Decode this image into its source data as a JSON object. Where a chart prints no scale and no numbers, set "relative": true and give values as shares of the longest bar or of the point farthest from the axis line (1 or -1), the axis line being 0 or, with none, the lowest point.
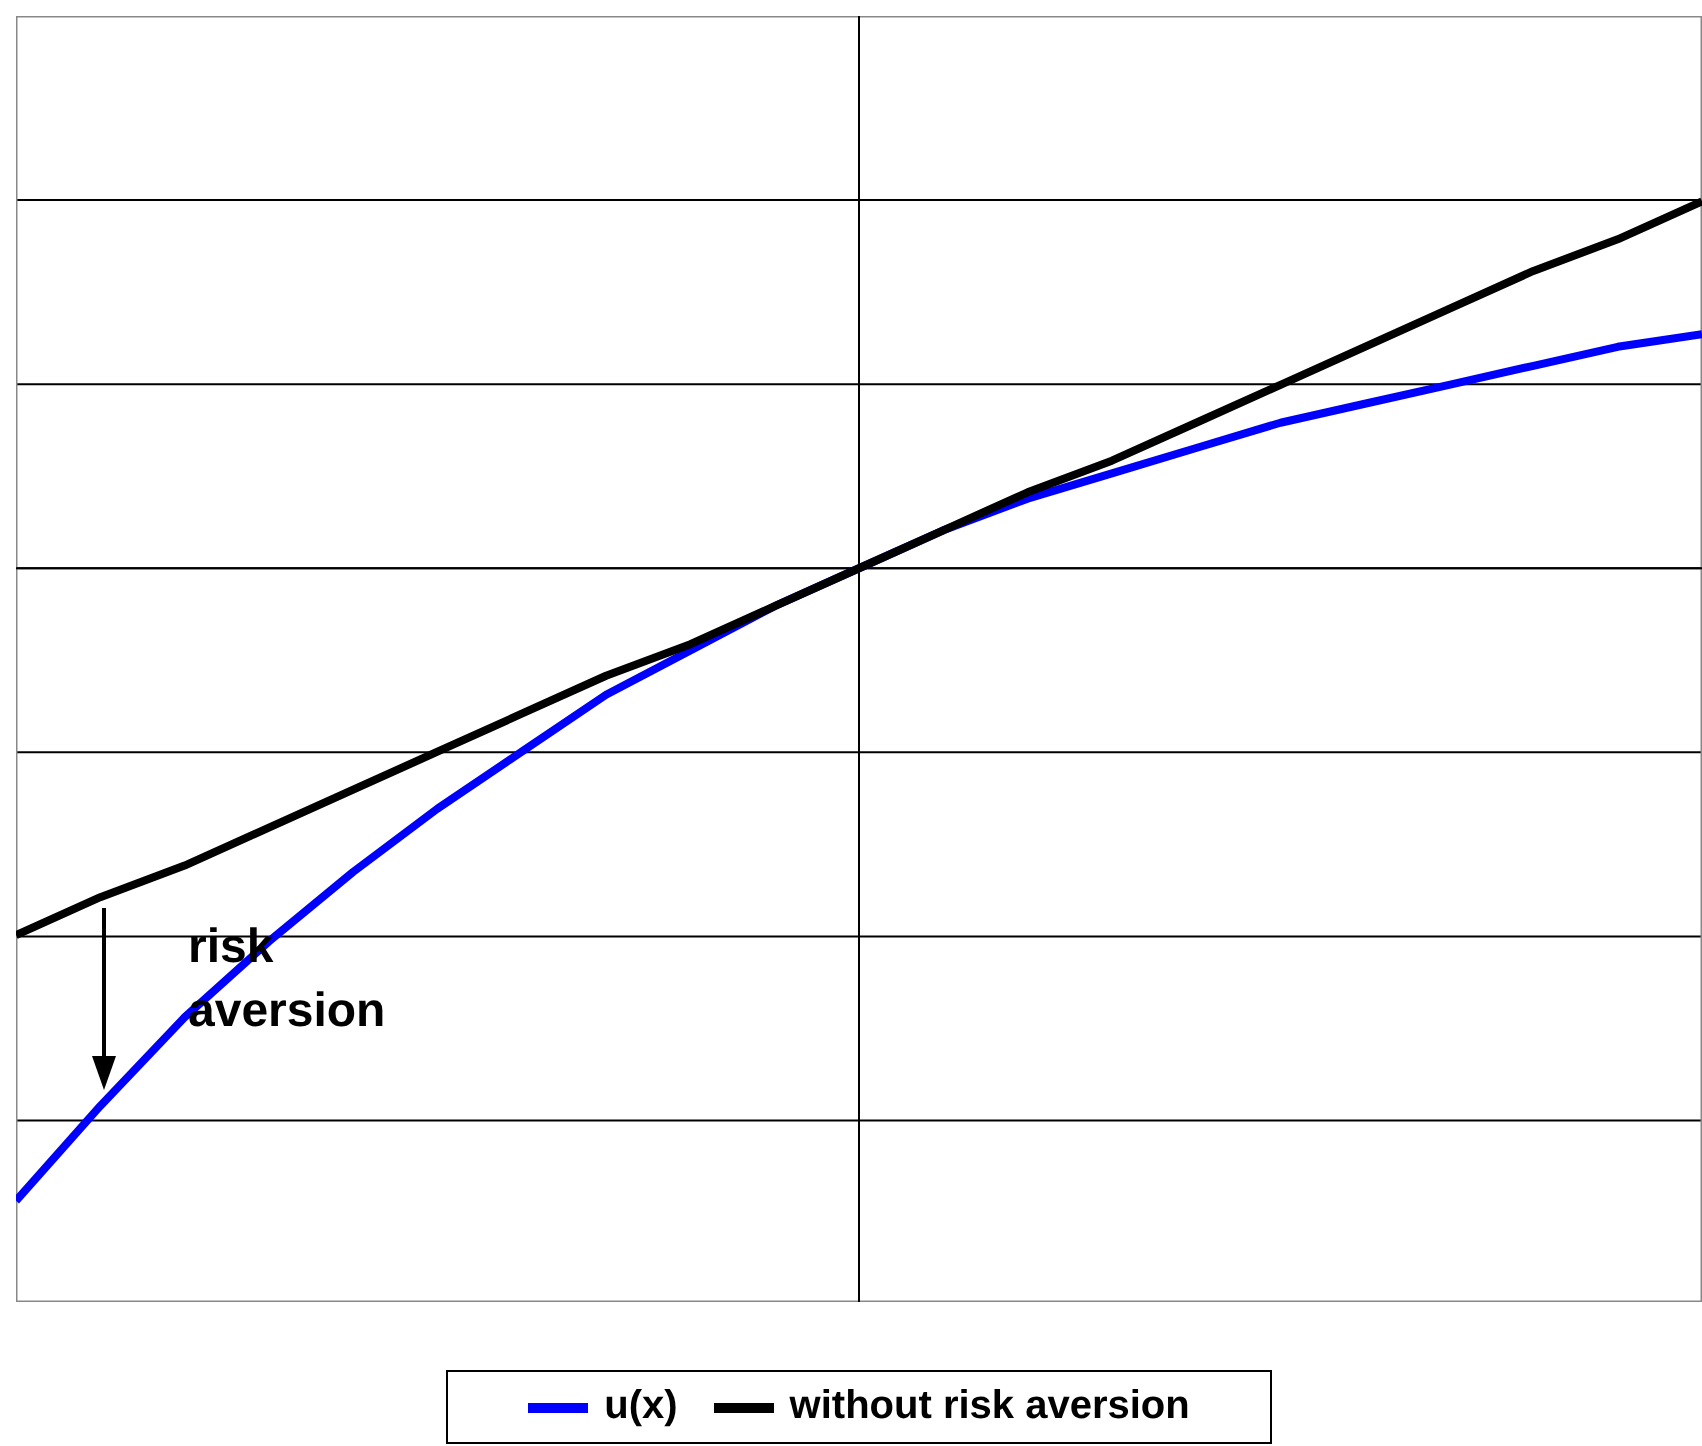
{
  "chart_data": {
    "type": "line",
    "relative": true,
    "grid": "y",
    "legend": "bottom",
    "marker": "none",
    "line_style": "solid",
    "categories": [
      null,
      null,
      null,
      null,
      null,
      null,
      null,
      null,
      null,
      null,
      null,
      null,
      null,
      null,
      null,
      null,
      null,
      null,
      null,
      null,
      null
    ],
    "series": [
      {
        "name": "u(x)",
        "color": "#0000ff",
        "values": [
          -1,
          -0.85,
          -0.71,
          -0.59,
          -0.48,
          -0.38,
          -0.29,
          -0.2,
          -0.13,
          -0.06,
          0,
          0.06,
          0.11,
          0.15,
          0.19,
          0.23,
          0.26,
          0.29,
          0.32,
          0.35,
          0.37
        ]
      },
      {
        "name": "without risk aversion",
        "color": "#000000",
        "values": [
          -0.58,
          -0.52,
          -0.47,
          -0.41,
          -0.35,
          -0.29,
          -0.23,
          -0.17,
          -0.12,
          -0.06,
          0,
          0.06,
          0.12,
          0.17,
          0.23,
          0.29,
          0.35,
          0.41,
          0.47,
          0.52,
          0.58
        ]
      }
    ],
    "annotations": [
      {
        "text": "risk aversion"
      }
    ]
  }
}
